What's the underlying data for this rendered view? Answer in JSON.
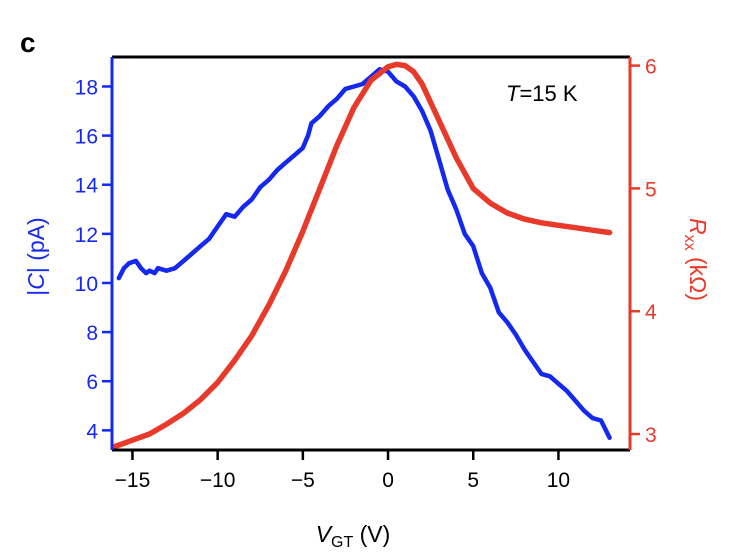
{
  "panel_label": "c",
  "colors": {
    "left": "#1428f0",
    "right": "#e83a2a",
    "axis": "#000000"
  },
  "chart_data": {
    "type": "line",
    "annotation": {
      "italic": "T",
      "text": "=15 K"
    },
    "xlabel": {
      "italic": "V",
      "sub": "GT",
      "unit": " (V)"
    },
    "ylabel_left": {
      "pre": "|",
      "italic": "C",
      "post": "| (pA)"
    },
    "ylabel_right": {
      "italic": "R",
      "sub": "xx",
      "unit": " (kΩ)"
    },
    "xlim": [
      -16.2,
      14.2
    ],
    "ylim_left": [
      3.2,
      19.2
    ],
    "ylim_right": [
      2.87,
      6.07
    ],
    "xticks": [
      -15,
      -10,
      -5,
      0,
      5,
      10
    ],
    "xtick_labels": [
      "−15",
      "−10",
      "−5",
      "0",
      "5",
      "10"
    ],
    "yticks_left": [
      4,
      6,
      8,
      10,
      12,
      14,
      16,
      18
    ],
    "yticks_right": [
      3,
      4,
      5,
      6
    ],
    "grid": false,
    "series": [
      {
        "axis": "left",
        "color": "#1428f0",
        "x": [
          -15.8,
          -15.5,
          -15.2,
          -14.8,
          -14.5,
          -14.2,
          -14.0,
          -13.7,
          -13.5,
          -13.0,
          -12.5,
          -12.0,
          -11.5,
          -11.0,
          -10.5,
          -10.0,
          -9.5,
          -9.0,
          -8.5,
          -8.0,
          -7.5,
          -7.0,
          -6.5,
          -6.0,
          -5.5,
          -5.0,
          -4.7,
          -4.5,
          -4.0,
          -3.5,
          -3.0,
          -2.5,
          -2.0,
          -1.5,
          -1.0,
          -0.5,
          0.0,
          0.5,
          1.0,
          1.5,
          2.0,
          2.5,
          3.0,
          3.5,
          4.0,
          4.5,
          5.0,
          5.5,
          6.0,
          6.5,
          7.0,
          7.5,
          8.0,
          8.5,
          9.0,
          9.5,
          10.0,
          10.5,
          11.0,
          11.5,
          12.0,
          12.5,
          13.0
        ],
        "y": [
          10.2,
          10.6,
          10.8,
          10.9,
          10.6,
          10.4,
          10.5,
          10.4,
          10.6,
          10.5,
          10.6,
          10.9,
          11.2,
          11.5,
          11.8,
          12.3,
          12.8,
          12.7,
          13.1,
          13.4,
          13.9,
          14.2,
          14.6,
          14.9,
          15.2,
          15.5,
          16.0,
          16.5,
          16.8,
          17.2,
          17.5,
          17.9,
          18.0,
          18.1,
          18.4,
          18.7,
          18.6,
          18.2,
          18.0,
          17.6,
          17.0,
          16.2,
          15.0,
          13.8,
          13.0,
          12.0,
          11.5,
          10.4,
          9.8,
          8.8,
          8.4,
          7.9,
          7.3,
          6.8,
          6.3,
          6.2,
          5.9,
          5.6,
          5.2,
          4.8,
          4.5,
          4.4,
          3.7
        ]
      },
      {
        "axis": "right",
        "color": "#e83a2a",
        "x": [
          -16.0,
          -15.0,
          -14.0,
          -13.0,
          -12.0,
          -11.0,
          -10.0,
          -9.0,
          -8.0,
          -7.0,
          -6.0,
          -5.0,
          -4.0,
          -3.0,
          -2.0,
          -1.0,
          0.0,
          0.5,
          1.0,
          1.5,
          2.0,
          3.0,
          4.0,
          5.0,
          6.0,
          7.0,
          8.0,
          9.0,
          10.0,
          11.0,
          12.0,
          13.0
        ],
        "y": [
          2.9,
          2.95,
          3.0,
          3.08,
          3.17,
          3.28,
          3.42,
          3.6,
          3.8,
          4.05,
          4.33,
          4.65,
          5.0,
          5.35,
          5.66,
          5.88,
          5.99,
          6.01,
          6.0,
          5.95,
          5.85,
          5.55,
          5.25,
          5.0,
          4.88,
          4.8,
          4.75,
          4.72,
          4.7,
          4.68,
          4.66,
          4.64
        ]
      }
    ]
  }
}
